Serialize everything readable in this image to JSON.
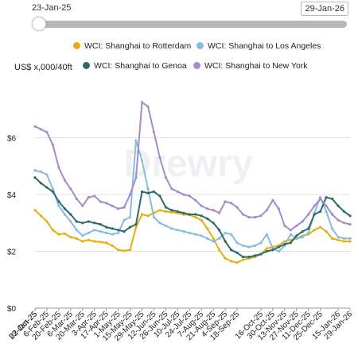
{
  "range_selector": {
    "start": "23-Jan-25",
    "end": "29-Jan-26"
  },
  "watermark": "Drewry",
  "chart_data": {
    "type": "line",
    "ylabel": "US$ x,000/40ft",
    "ylim": [
      0,
      8
    ],
    "yticks": [
      0,
      2,
      4,
      6
    ],
    "ytick_labels": [
      "$0",
      "$2",
      "$4",
      "$6"
    ],
    "grid": "horizontal",
    "legend_position": "top",
    "x": [
      "23-Jan-25",
      "30-Jan-25",
      "6-Feb-25",
      "13-Feb-25",
      "20-Feb-25",
      "27-Feb-25",
      "6-Mar-25",
      "13-Mar-25",
      "20-Mar-25",
      "27-Mar-25",
      "3-Apr-25",
      "10-Apr-25",
      "17-Apr-25",
      "24-Apr-25",
      "1-May-25",
      "8-May-25",
      "15-May-25",
      "22-May-25",
      "29-May-25",
      "5-Jun-25",
      "12-Jun-25",
      "19-Jun-25",
      "26-Jun-25",
      "3-Jul-25",
      "10-Jul-25",
      "17-Jul-25",
      "24-Jul-25",
      "31-Jul-25",
      "7-Aug-25",
      "14-Aug-25",
      "21-Aug-25",
      "28-Aug-25",
      "4-Sep-25",
      "11-Sep-25",
      "18-Sep-25",
      "25-Sep-25",
      "2-Oct-25",
      "9-Oct-25",
      "16-Oct-25",
      "23-Oct-25",
      "30-Oct-25",
      "6-Nov-25",
      "13-Nov-25",
      "20-Nov-25",
      "27-Nov-25",
      "4-Dec-25",
      "11-Dec-25",
      "18-Dec-25",
      "25-Dec-25",
      "1-Jan-26",
      "8-Jan-26",
      "15-Jan-26",
      "22-Jan-26",
      "29-Jan-26"
    ],
    "xtick_labels": [
      "23-Jan-25",
      "6-Feb-25",
      "20-Feb-25",
      "6-Mar-25",
      "20-Mar-25",
      "3-Apr-25",
      "17-Apr-25",
      "1-May-25",
      "15-May-25",
      "29-May-25",
      "12-Jun-25",
      "26-Jun-25",
      "10-Jul-25",
      "24-Jul-25",
      "7-Aug-25",
      "21-Aug-25",
      "4-Sep-25",
      "18-Sep-25",
      "02-Oct-25",
      "16-Oct-25",
      "30-Oct-25",
      "13-Nov-25",
      "27-Nov-25",
      "11-Dec-25",
      "25-Dec-25",
      "15-Jan-26",
      "29-Jan-26"
    ],
    "series": [
      {
        "name": "WCI: Shanghai to Rotterdam",
        "color": "#e8ad0e",
        "values": [
          3.45,
          3.25,
          3.05,
          2.75,
          2.6,
          2.62,
          2.5,
          2.45,
          2.35,
          2.4,
          2.35,
          2.33,
          2.3,
          2.2,
          2.05,
          2.02,
          2.05,
          2.85,
          3.3,
          3.25,
          3.35,
          3.45,
          3.4,
          3.38,
          3.35,
          3.3,
          3.28,
          3.2,
          3.1,
          2.8,
          2.45,
          2.05,
          1.75,
          1.65,
          1.6,
          1.7,
          1.75,
          1.8,
          1.9,
          2.1,
          2.15,
          2.2,
          2.35,
          2.4,
          2.45,
          2.55,
          2.6,
          2.75,
          2.85,
          2.7,
          2.45,
          2.4,
          2.35,
          2.35
        ]
      },
      {
        "name": "WCI: Shanghai to Los Angeles",
        "color": "#86bce0",
        "values": [
          4.85,
          4.8,
          4.7,
          4.2,
          3.6,
          3.3,
          3.05,
          2.75,
          2.55,
          2.65,
          2.75,
          2.7,
          2.65,
          2.6,
          2.65,
          3.1,
          3.2,
          5.9,
          5.2,
          4.2,
          3.2,
          3.0,
          2.9,
          2.8,
          2.75,
          2.7,
          2.65,
          2.6,
          2.55,
          2.45,
          2.35,
          2.45,
          2.65,
          2.6,
          2.3,
          2.2,
          2.15,
          2.2,
          2.3,
          2.6,
          2.1,
          2.0,
          2.2,
          2.6,
          2.45,
          2.5,
          2.65,
          3.35,
          3.9,
          3.4,
          2.8,
          2.5,
          2.45,
          2.45
        ]
      },
      {
        "name": "WCI: Shanghai to Genoa",
        "color": "#2d6a6a",
        "values": [
          4.6,
          4.4,
          4.25,
          4.1,
          3.75,
          3.5,
          3.3,
          3.05,
          3.0,
          3.05,
          3.0,
          2.95,
          2.85,
          2.8,
          2.75,
          2.7,
          2.85,
          2.95,
          4.1,
          4.05,
          4.1,
          3.95,
          3.55,
          3.45,
          3.4,
          3.35,
          3.3,
          3.3,
          3.25,
          3.15,
          3.0,
          2.75,
          2.35,
          2.05,
          1.95,
          1.8,
          1.8,
          1.85,
          1.9,
          2.0,
          2.05,
          2.15,
          2.25,
          2.3,
          2.55,
          2.7,
          2.8,
          3.3,
          3.4,
          3.9,
          3.85,
          3.6,
          3.4,
          3.25
        ]
      },
      {
        "name": "WCI: Shanghai to New York",
        "color": "#a58bc8",
        "values": [
          6.4,
          6.3,
          6.2,
          5.75,
          4.95,
          4.5,
          4.2,
          3.85,
          3.6,
          3.9,
          3.95,
          3.75,
          3.7,
          3.6,
          3.5,
          3.55,
          4.0,
          4.6,
          7.25,
          7.1,
          6.2,
          5.3,
          4.6,
          4.2,
          4.1,
          4.0,
          3.95,
          3.8,
          3.6,
          3.5,
          3.45,
          3.35,
          3.75,
          3.7,
          3.55,
          3.3,
          3.2,
          3.2,
          3.25,
          3.45,
          3.8,
          3.5,
          2.9,
          2.75,
          2.9,
          3.05,
          3.3,
          3.6,
          3.85,
          3.6,
          3.3,
          3.1,
          3.0,
          2.95
        ]
      }
    ]
  }
}
